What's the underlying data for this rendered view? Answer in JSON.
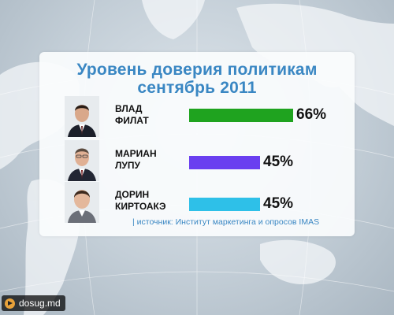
{
  "header": {
    "title_line1": "Уровень доверия политикам",
    "title_line2": "сентябрь 2011"
  },
  "people": [
    {
      "name_line1": "ВЛАД",
      "name_line2": "ФИЛАТ",
      "percent_label": "66%",
      "bar_color": "#1fa31f"
    },
    {
      "name_line1": "МАРИАН",
      "name_line2": "ЛУПУ",
      "percent_label": "45%",
      "bar_color": "#6a3ff0"
    },
    {
      "name_line1": "ДОРИН",
      "name_line2": "КИРТОАКЭ",
      "percent_label": "45%",
      "bar_color": "#2ec0e8"
    }
  ],
  "source": "| источник: Институт маркетинга и опросов IMAS",
  "watermark": {
    "text": "dosug.md",
    "icon": "play-icon"
  },
  "colors": {
    "title": "#3a87c3",
    "source": "#3a87c3"
  },
  "chart_data": {
    "type": "bar",
    "orientation": "horizontal",
    "title": "Уровень доверия политикам сентябрь 2011",
    "categories": [
      "ВЛАД ФИЛАТ",
      "МАРИАН ЛУПУ",
      "ДОРИН КИРТОАКЭ"
    ],
    "values": [
      66,
      45,
      45
    ],
    "value_labels": [
      "66%",
      "45%",
      "45%"
    ],
    "xlabel": "",
    "ylabel": "",
    "grid": false,
    "legend": "none"
  }
}
